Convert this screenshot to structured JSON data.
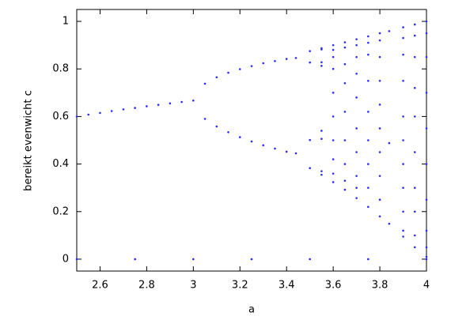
{
  "chart_data": {
    "type": "scatter",
    "xlabel": "a",
    "ylabel": "bereikt evenwicht c",
    "color": "#2a2aff",
    "xlim": [
      2.5,
      4
    ],
    "ylim": [
      -0.05,
      1.05
    ],
    "xticks": [
      2.6,
      2.8,
      3,
      3.2,
      3.4,
      3.6,
      3.8,
      4
    ],
    "yticks": [
      0,
      0.2,
      0.4,
      0.6,
      0.8,
      1
    ],
    "x": [
      2.5,
      2.55,
      2.6,
      2.65,
      2.7,
      2.75,
      2.8,
      2.85,
      2.9,
      2.95,
      3.0,
      3.05,
      3.05,
      3.1,
      3.1,
      3.15,
      3.15,
      3.2,
      3.2,
      3.25,
      3.25,
      3.3,
      3.3,
      3.35,
      3.35,
      3.4,
      3.4,
      3.44,
      3.44,
      3.5,
      3.5,
      3.5,
      3.5,
      3.55,
      3.55,
      3.55,
      3.55,
      3.55,
      3.55,
      3.55,
      3.55,
      3.6,
      3.6,
      3.6,
      3.6,
      3.6,
      3.6,
      3.6,
      3.6,
      3.6,
      3.6,
      3.65,
      3.65,
      3.65,
      3.65,
      3.65,
      3.65,
      3.65,
      3.65,
      3.65,
      3.7,
      3.7,
      3.7,
      3.7,
      3.7,
      3.7,
      3.7,
      3.7,
      3.7,
      3.7,
      3.75,
      3.75,
      3.75,
      3.75,
      3.75,
      3.75,
      3.75,
      3.75,
      3.75,
      3.8,
      3.8,
      3.8,
      3.8,
      3.8,
      3.8,
      3.8,
      3.8,
      3.8,
      3.8,
      3.84,
      3.84,
      3.84,
      3.9,
      3.9,
      3.9,
      3.9,
      3.9,
      3.9,
      3.9,
      3.9,
      3.9,
      3.9,
      3.9,
      3.95,
      3.95,
      3.95,
      3.95,
      3.95,
      3.95,
      3.95,
      3.95,
      3.95,
      3.95,
      4,
      4,
      4,
      4,
      4,
      4,
      4,
      4,
      4,
      4,
      2.5,
      2.75,
      3,
      3.25,
      3.5,
      3.75,
      4
    ],
    "values": [
      0.6,
      0.608,
      0.615,
      0.623,
      0.63,
      0.636,
      0.643,
      0.649,
      0.655,
      0.661,
      0.667,
      0.738,
      0.59,
      0.765,
      0.558,
      0.784,
      0.534,
      0.799,
      0.513,
      0.812,
      0.495,
      0.824,
      0.479,
      0.833,
      0.465,
      0.842,
      0.452,
      0.846,
      0.445,
      0.875,
      0.383,
      0.827,
      0.501,
      0.887,
      0.355,
      0.813,
      0.54,
      0.882,
      0.37,
      0.828,
      0.506,
      0.9,
      0.88,
      0.85,
      0.8,
      0.7,
      0.6,
      0.5,
      0.42,
      0.36,
      0.324,
      0.912,
      0.89,
      0.82,
      0.74,
      0.62,
      0.5,
      0.4,
      0.33,
      0.292,
      0.925,
      0.9,
      0.85,
      0.78,
      0.68,
      0.55,
      0.45,
      0.35,
      0.3,
      0.257,
      0.937,
      0.91,
      0.86,
      0.75,
      0.62,
      0.5,
      0.4,
      0.3,
      0.22,
      0.95,
      0.92,
      0.85,
      0.75,
      0.65,
      0.55,
      0.45,
      0.35,
      0.25,
      0.18,
      0.959,
      0.488,
      0.149,
      0.975,
      0.93,
      0.86,
      0.75,
      0.6,
      0.5,
      0.4,
      0.3,
      0.2,
      0.12,
      0.095,
      0.987,
      0.94,
      0.85,
      0.72,
      0.6,
      0.45,
      0.3,
      0.2,
      0.1,
      0.05,
      1,
      0.95,
      0.85,
      0.7,
      0.55,
      0.4,
      0.25,
      0.12,
      0.05,
      0.01,
      0,
      0,
      0,
      0,
      0,
      0,
      0
    ]
  }
}
